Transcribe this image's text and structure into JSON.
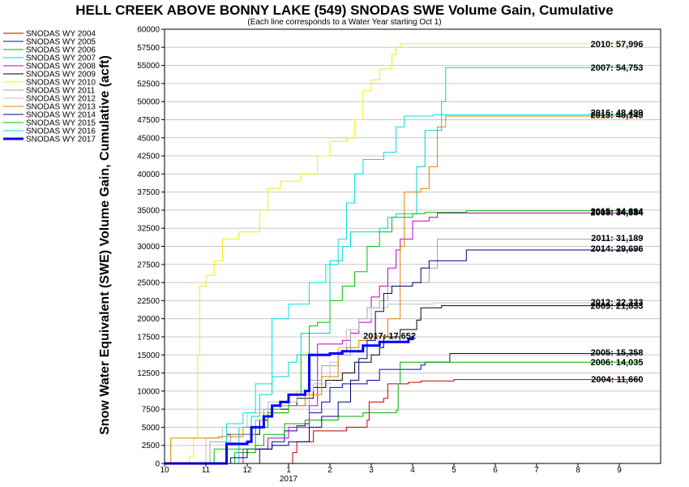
{
  "chart_data": {
    "type": "line",
    "title": "HELL CREEK ABOVE BONNY LAKE (549) SNODAS SWE Volume Gain, Cumulative",
    "subtitle": "(Each line corresponds to a Water Year starting Oct 1)",
    "ylabel": "Snow Water Equivalent (SWE) Volume Gain, Cumulative (acft)",
    "xlabel": "",
    "ylim": [
      0,
      60000
    ],
    "xlim": [
      10,
      22
    ],
    "x_ticks": [
      {
        "value": 10,
        "label": "10"
      },
      {
        "value": 11,
        "label": "11"
      },
      {
        "value": 12,
        "label": "12"
      },
      {
        "value": 13,
        "label": "1"
      },
      {
        "value": 14,
        "label": "2"
      },
      {
        "value": 15,
        "label": "3"
      },
      {
        "value": 16,
        "label": "4"
      },
      {
        "value": 17,
        "label": "5"
      },
      {
        "value": 18,
        "label": "6"
      },
      {
        "value": 19,
        "label": "7"
      },
      {
        "value": 20,
        "label": "8"
      },
      {
        "value": 21,
        "label": "9"
      }
    ],
    "year_label": {
      "value": 13,
      "label": "2017"
    },
    "y_ticks": [
      0,
      2500,
      5000,
      7500,
      10000,
      12500,
      15000,
      17500,
      20000,
      22500,
      25000,
      27500,
      30000,
      32500,
      35000,
      37500,
      40000,
      42500,
      45000,
      47500,
      50000,
      52500,
      55000,
      57500,
      60000
    ],
    "grid": true,
    "legend_position": "left",
    "series": [
      {
        "name": "SNODAS WY 2004",
        "color": "#c00000",
        "width": 1,
        "points": [
          [
            10,
            0
          ],
          [
            13.1,
            0
          ],
          [
            13.1,
            1500
          ],
          [
            13.2,
            3000
          ],
          [
            13.5,
            3000
          ],
          [
            13.6,
            4500
          ],
          [
            14.4,
            5000
          ],
          [
            14.9,
            6000
          ],
          [
            14.95,
            8500
          ],
          [
            15.3,
            9000
          ],
          [
            15.4,
            11000
          ],
          [
            15.9,
            11200
          ],
          [
            16.2,
            11400
          ],
          [
            17,
            11600
          ],
          [
            21.5,
            11660
          ]
        ],
        "end_label": "2004: 11,660"
      },
      {
        "name": "SNODAS WY 2005",
        "color": "#0000c0",
        "width": 1,
        "points": [
          [
            10,
            0
          ],
          [
            12.3,
            0
          ],
          [
            12.3,
            2000
          ],
          [
            12.6,
            3000
          ],
          [
            12.9,
            4500
          ],
          [
            13.2,
            5200
          ],
          [
            13.4,
            5500
          ],
          [
            13.5,
            7000
          ],
          [
            13.8,
            8500
          ],
          [
            14.0,
            10500
          ],
          [
            14.3,
            11000
          ],
          [
            14.9,
            11500
          ],
          [
            15.2,
            13000
          ],
          [
            16.2,
            13600
          ],
          [
            16.3,
            14000
          ],
          [
            16.9,
            15200
          ],
          [
            21.5,
            15358
          ]
        ],
        "end_label": "2005: 15,358"
      },
      {
        "name": "SNODAS WY 2006",
        "color": "#00b000",
        "width": 1,
        "points": [
          [
            10,
            0
          ],
          [
            11.7,
            0
          ],
          [
            11.7,
            1500
          ],
          [
            12.2,
            2500
          ],
          [
            12.4,
            4000
          ],
          [
            12.9,
            5500
          ],
          [
            13.4,
            6000
          ],
          [
            14.2,
            6500
          ],
          [
            14.8,
            7000
          ],
          [
            15.6,
            7300
          ],
          [
            15.65,
            11000
          ],
          [
            15.7,
            14000
          ],
          [
            21.5,
            14035
          ]
        ],
        "end_label": "2006: 14,035"
      },
      {
        "name": "SNODAS WY 2007",
        "color": "#00d0d0",
        "width": 1,
        "points": [
          [
            10,
            0
          ],
          [
            11.8,
            0
          ],
          [
            11.8,
            5000
          ],
          [
            12.1,
            6500
          ],
          [
            12.3,
            9500
          ],
          [
            12.6,
            12000
          ],
          [
            13.0,
            14000
          ],
          [
            13.2,
            15000
          ],
          [
            13.3,
            18000
          ],
          [
            14.0,
            20000
          ],
          [
            14.0,
            28000
          ],
          [
            14.3,
            30000
          ],
          [
            14.5,
            32000
          ],
          [
            15.2,
            32500
          ],
          [
            15.4,
            34000
          ],
          [
            15.6,
            34500
          ],
          [
            16.1,
            41000
          ],
          [
            16.3,
            46000
          ],
          [
            16.7,
            50000
          ],
          [
            16.8,
            54700
          ],
          [
            21.5,
            54753
          ]
        ],
        "end_label": "2007: 54,753"
      },
      {
        "name": "SNODAS WY 2008",
        "color": "#c000c0",
        "width": 1,
        "points": [
          [
            10,
            0
          ],
          [
            11.9,
            0
          ],
          [
            11.9,
            2000
          ],
          [
            12.5,
            3500
          ],
          [
            13.0,
            5000
          ],
          [
            13.5,
            8000
          ],
          [
            13.7,
            16500
          ],
          [
            14.3,
            17000
          ],
          [
            14.5,
            18000
          ],
          [
            14.7,
            19500
          ],
          [
            15.0,
            23000
          ],
          [
            15.2,
            24500
          ],
          [
            15.4,
            27000
          ],
          [
            15.6,
            29500
          ],
          [
            15.7,
            31000
          ],
          [
            16.0,
            33500
          ],
          [
            16.4,
            34000
          ],
          [
            16.6,
            34600
          ],
          [
            21.5,
            34684
          ]
        ],
        "end_label": "2008: 34,684"
      },
      {
        "name": "SNODAS WY 2009",
        "color": "#000000",
        "width": 1,
        "points": [
          [
            10,
            0
          ],
          [
            11.5,
            0
          ],
          [
            11.5,
            4000
          ],
          [
            12.3,
            6000
          ],
          [
            12.5,
            7500
          ],
          [
            13.0,
            8000
          ],
          [
            13.2,
            9000
          ],
          [
            13.6,
            10500
          ],
          [
            13.9,
            11500
          ],
          [
            14.3,
            12500
          ],
          [
            14.6,
            14000
          ],
          [
            15.0,
            15000
          ],
          [
            15.2,
            16000
          ],
          [
            15.3,
            17500
          ],
          [
            15.7,
            18500
          ],
          [
            16.1,
            19800
          ],
          [
            16.2,
            21500
          ],
          [
            16.7,
            21800
          ],
          [
            21.5,
            21833
          ]
        ],
        "end_label": "2009: 21,833"
      },
      {
        "name": "SNODAS WY 2010",
        "color": "#f0f000",
        "width": 1,
        "points": [
          [
            10,
            0
          ],
          [
            10.6,
            0
          ],
          [
            10.6,
            1000
          ],
          [
            10.7,
            3500
          ],
          [
            10.8,
            15000
          ],
          [
            10.85,
            24500
          ],
          [
            11.0,
            26000
          ],
          [
            11.2,
            28000
          ],
          [
            11.4,
            31000
          ],
          [
            11.8,
            32000
          ],
          [
            12.3,
            35000
          ],
          [
            12.5,
            38000
          ],
          [
            12.8,
            39000
          ],
          [
            13.3,
            40000
          ],
          [
            13.7,
            42500
          ],
          [
            14.0,
            44500
          ],
          [
            14.4,
            45000
          ],
          [
            14.6,
            47500
          ],
          [
            14.8,
            51500
          ],
          [
            15.0,
            53000
          ],
          [
            15.2,
            54500
          ],
          [
            15.5,
            56500
          ],
          [
            15.6,
            57500
          ],
          [
            15.7,
            58000
          ],
          [
            21.5,
            57996
          ]
        ],
        "end_label": "2010: 57,996"
      },
      {
        "name": "SNODAS WY 2011",
        "color": "#a0a0a0",
        "width": 1,
        "points": [
          [
            10,
            0
          ],
          [
            11.1,
            0
          ],
          [
            11.1,
            3000
          ],
          [
            11.6,
            4000
          ],
          [
            12.2,
            6000
          ],
          [
            12.4,
            7500
          ],
          [
            12.8,
            8000
          ],
          [
            13.5,
            11500
          ],
          [
            13.8,
            13500
          ],
          [
            14.2,
            15000
          ],
          [
            14.5,
            18500
          ],
          [
            14.7,
            20000
          ],
          [
            14.9,
            21500
          ],
          [
            15.2,
            22500
          ],
          [
            15.4,
            24500
          ],
          [
            16.0,
            25000
          ],
          [
            16.4,
            27000
          ],
          [
            16.6,
            31000
          ],
          [
            21.5,
            31189
          ]
        ],
        "end_label": "2011: 31,189"
      },
      {
        "name": "SNODAS WY 2012",
        "color": "#c0c0c0",
        "width": 1,
        "points": [
          [
            10,
            0
          ],
          [
            11.0,
            0
          ],
          [
            11.0,
            3500
          ],
          [
            11.4,
            5000
          ],
          [
            12.0,
            7000
          ],
          [
            12.5,
            8500
          ],
          [
            13.2,
            10000
          ],
          [
            13.6,
            11000
          ],
          [
            14.0,
            14000
          ],
          [
            14.2,
            16000
          ],
          [
            14.4,
            18500
          ],
          [
            14.7,
            20000
          ],
          [
            15.0,
            21500
          ],
          [
            15.4,
            22000
          ],
          [
            16.5,
            22200
          ],
          [
            21.5,
            22333
          ]
        ],
        "end_label": "2012: 22,333"
      },
      {
        "name": "SNODAS WY 2013",
        "color": "#e08000",
        "width": 1,
        "points": [
          [
            10,
            0
          ],
          [
            10.15,
            0
          ],
          [
            10.15,
            3500
          ],
          [
            11.3,
            3700
          ],
          [
            11.9,
            5000
          ],
          [
            12.5,
            7000
          ],
          [
            13.0,
            8000
          ],
          [
            13.4,
            9500
          ],
          [
            13.8,
            12000
          ],
          [
            14.2,
            15500
          ],
          [
            14.4,
            16000
          ],
          [
            14.7,
            17000
          ],
          [
            15.0,
            17600
          ],
          [
            15.4,
            20000
          ],
          [
            15.7,
            30000
          ],
          [
            15.8,
            37500
          ],
          [
            16.2,
            38000
          ],
          [
            16.4,
            41000
          ],
          [
            16.6,
            46500
          ],
          [
            16.8,
            48000
          ],
          [
            21.5,
            48149
          ]
        ],
        "end_label": "2013: 48,149"
      },
      {
        "name": "SNODAS WY 2014",
        "color": "#000080",
        "width": 1,
        "points": [
          [
            10,
            0
          ],
          [
            11.6,
            0
          ],
          [
            11.6,
            800
          ],
          [
            12.0,
            2000
          ],
          [
            12.6,
            2500
          ],
          [
            13.0,
            3000
          ],
          [
            13.5,
            5000
          ],
          [
            13.8,
            6500
          ],
          [
            14.2,
            8500
          ],
          [
            14.5,
            11500
          ],
          [
            14.7,
            14500
          ],
          [
            14.9,
            17000
          ],
          [
            15.1,
            21000
          ],
          [
            15.3,
            23500
          ],
          [
            15.5,
            24500
          ],
          [
            16.0,
            25000
          ],
          [
            16.2,
            27000
          ],
          [
            16.4,
            28000
          ],
          [
            17.3,
            29500
          ],
          [
            21.5,
            29696
          ]
        ],
        "end_label": "2014: 29,696"
      },
      {
        "name": "SNODAS WY 2015",
        "color": "#00c000",
        "width": 1,
        "points": [
          [
            10,
            0
          ],
          [
            11.2,
            0
          ],
          [
            11.2,
            2000
          ],
          [
            12.2,
            5000
          ],
          [
            12.5,
            7000
          ],
          [
            13.0,
            9500
          ],
          [
            13.3,
            15000
          ],
          [
            13.5,
            19000
          ],
          [
            13.7,
            19500
          ],
          [
            14.0,
            22500
          ],
          [
            14.3,
            24500
          ],
          [
            14.6,
            26500
          ],
          [
            14.9,
            30000
          ],
          [
            15.2,
            32000
          ],
          [
            15.5,
            34000
          ],
          [
            16.0,
            34500
          ],
          [
            16.3,
            34700
          ],
          [
            17.3,
            34900
          ],
          [
            21.5,
            34894
          ]
        ],
        "end_label": "2015: 34,894"
      },
      {
        "name": "SNODAS WY 2016",
        "color": "#00e0e0",
        "width": 1,
        "points": [
          [
            10,
            0
          ],
          [
            11.5,
            0
          ],
          [
            11.5,
            5500
          ],
          [
            11.9,
            7000
          ],
          [
            12.2,
            11000
          ],
          [
            12.6,
            20000
          ],
          [
            13.0,
            22000
          ],
          [
            13.5,
            25000
          ],
          [
            13.9,
            27500
          ],
          [
            14.2,
            31000
          ],
          [
            14.4,
            36000
          ],
          [
            14.6,
            40000
          ],
          [
            14.8,
            42000
          ],
          [
            15.3,
            43000
          ],
          [
            15.6,
            46500
          ],
          [
            15.8,
            48000
          ],
          [
            16.5,
            48200
          ],
          [
            21.5,
            48499
          ]
        ],
        "end_label": "2016: 48,499"
      },
      {
        "name": "SNODAS WY 2017",
        "color": "#0000ff",
        "width": 3,
        "points": [
          [
            10,
            0
          ],
          [
            11.5,
            0
          ],
          [
            11.5,
            2700
          ],
          [
            12.0,
            3000
          ],
          [
            12.1,
            5000
          ],
          [
            12.4,
            6500
          ],
          [
            12.6,
            8000
          ],
          [
            12.8,
            8500
          ],
          [
            13.0,
            9500
          ],
          [
            13.4,
            10000
          ],
          [
            13.5,
            15000
          ],
          [
            14.0,
            15200
          ],
          [
            14.3,
            15500
          ],
          [
            14.8,
            16300
          ],
          [
            15.2,
            16800
          ],
          [
            15.9,
            17200
          ],
          [
            16.0,
            17652
          ]
        ],
        "end_label": "2017: 17,652"
      }
    ]
  }
}
